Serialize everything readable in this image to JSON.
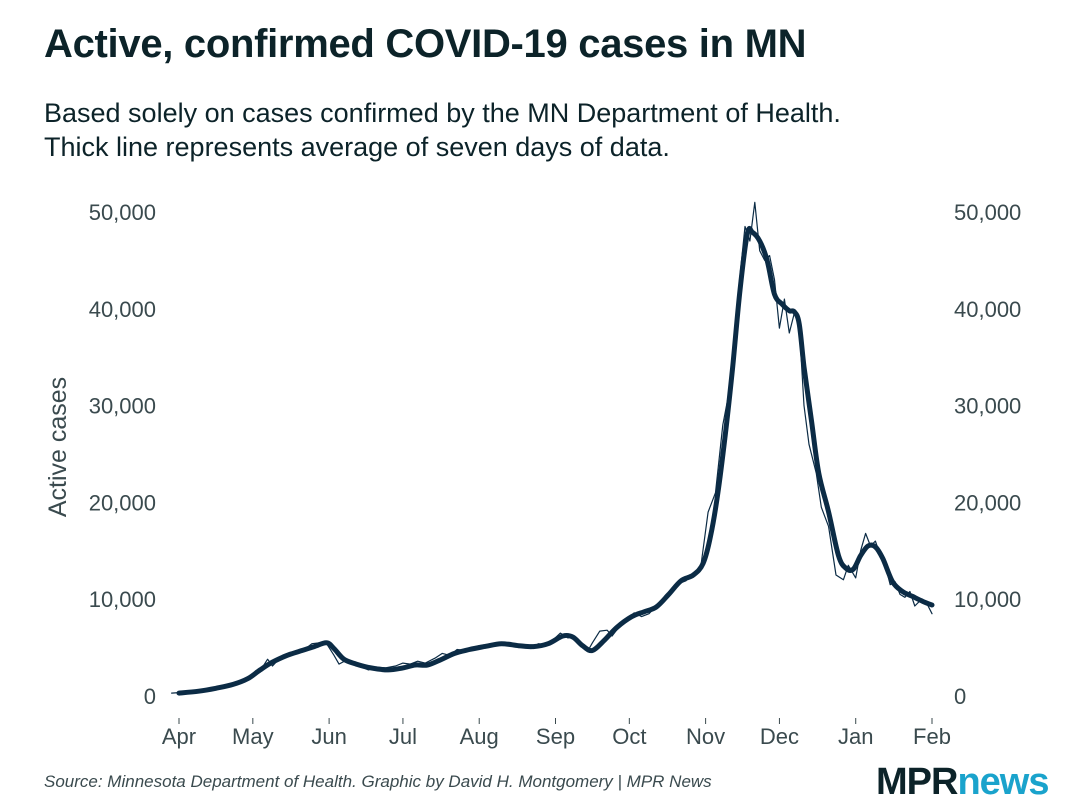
{
  "header": {
    "title": "Active, confirmed COVID-19 cases in MN",
    "subtitle_lines": [
      "Based solely on cases confirmed by the MN Department of Health.",
      "Thick line represents average of seven days of data."
    ]
  },
  "footer": {
    "source": "Source: Minnesota Department of Health. Graphic by David H. Montgomery | MPR News",
    "logo_mpr": "MPR",
    "logo_news": "news"
  },
  "colors": {
    "line": "#0b2b45",
    "text": "#0c2329",
    "axis_text": "#3a4a4e",
    "logo_dark": "#0c2329",
    "logo_accent": "#1aa3cc"
  },
  "chart_data": {
    "type": "line",
    "title": "Active, confirmed COVID-19 cases in MN",
    "xlabel": "",
    "ylabel": "Active cases",
    "x_unit": "days since Apr 1",
    "xlim": [
      0,
      306
    ],
    "ylim": [
      0,
      50000
    ],
    "grid": false,
    "legend": "none",
    "x_ticks": [
      {
        "day": 0,
        "label": "Apr"
      },
      {
        "day": 30,
        "label": "May"
      },
      {
        "day": 61,
        "label": "Jun"
      },
      {
        "day": 91,
        "label": "Jul"
      },
      {
        "day": 122,
        "label": "Aug"
      },
      {
        "day": 153,
        "label": "Sep"
      },
      {
        "day": 183,
        "label": "Oct"
      },
      {
        "day": 214,
        "label": "Nov"
      },
      {
        "day": 244,
        "label": "Dec"
      },
      {
        "day": 275,
        "label": "Jan"
      },
      {
        "day": 306,
        "label": "Feb"
      }
    ],
    "y_ticks": [
      {
        "value": 0,
        "label": "0"
      },
      {
        "value": 10000,
        "label": "10,000"
      },
      {
        "value": 20000,
        "label": "20,000"
      },
      {
        "value": 30000,
        "label": "30,000"
      },
      {
        "value": 40000,
        "label": "40,000"
      },
      {
        "value": 50000,
        "label": "50,000"
      }
    ],
    "series": [
      {
        "name": "Daily active cases",
        "style": "thin",
        "points": [
          [
            -3,
            300
          ],
          [
            3,
            400
          ],
          [
            10,
            600
          ],
          [
            17,
            900
          ],
          [
            24,
            1400
          ],
          [
            30,
            2000
          ],
          [
            33,
            2600
          ],
          [
            36,
            3800
          ],
          [
            38,
            3100
          ],
          [
            42,
            4200
          ],
          [
            45,
            4500
          ],
          [
            48,
            4600
          ],
          [
            51,
            4800
          ],
          [
            54,
            5400
          ],
          [
            57,
            5500
          ],
          [
            60,
            5400
          ],
          [
            63,
            4200
          ],
          [
            65,
            3300
          ],
          [
            68,
            3700
          ],
          [
            71,
            3200
          ],
          [
            74,
            3000
          ],
          [
            77,
            2700
          ],
          [
            80,
            3000
          ],
          [
            84,
            2900
          ],
          [
            88,
            3100
          ],
          [
            91,
            3400
          ],
          [
            94,
            3300
          ],
          [
            97,
            3600
          ],
          [
            100,
            3400
          ],
          [
            104,
            3900
          ],
          [
            107,
            4400
          ],
          [
            110,
            4200
          ],
          [
            113,
            4800
          ],
          [
            116,
            4700
          ],
          [
            119,
            5000
          ],
          [
            122,
            5200
          ],
          [
            125,
            5000
          ],
          [
            128,
            5300
          ],
          [
            131,
            5500
          ],
          [
            134,
            5500
          ],
          [
            137,
            5100
          ],
          [
            140,
            5300
          ],
          [
            143,
            4900
          ],
          [
            146,
            5400
          ],
          [
            149,
            5300
          ],
          [
            152,
            5800
          ],
          [
            155,
            6500
          ],
          [
            158,
            6000
          ],
          [
            161,
            6100
          ],
          [
            163,
            5200
          ],
          [
            166,
            4600
          ],
          [
            168,
            5500
          ],
          [
            171,
            6700
          ],
          [
            174,
            6800
          ],
          [
            176,
            6200
          ],
          [
            179,
            7200
          ],
          [
            182,
            8000
          ],
          [
            185,
            8600
          ],
          [
            188,
            8200
          ],
          [
            191,
            8500
          ],
          [
            194,
            9300
          ],
          [
            197,
            9900
          ],
          [
            200,
            10600
          ],
          [
            203,
            11600
          ],
          [
            206,
            11900
          ],
          [
            209,
            12700
          ],
          [
            212,
            13300
          ],
          [
            215,
            19000
          ],
          [
            218,
            21000
          ],
          [
            221,
            28000
          ],
          [
            224,
            32000
          ],
          [
            227,
            41000
          ],
          [
            230,
            48500
          ],
          [
            232,
            47000
          ],
          [
            234,
            51000
          ],
          [
            236,
            46000
          ],
          [
            238,
            45000
          ],
          [
            240,
            45500
          ],
          [
            242,
            43000
          ],
          [
            244,
            38000
          ],
          [
            246,
            41000
          ],
          [
            248,
            37500
          ],
          [
            250,
            39500
          ],
          [
            252,
            38500
          ],
          [
            254,
            30000
          ],
          [
            256,
            26000
          ],
          [
            259,
            23000
          ],
          [
            261,
            19500
          ],
          [
            264,
            17500
          ],
          [
            267,
            12500
          ],
          [
            270,
            12000
          ],
          [
            272,
            13500
          ],
          [
            275,
            12200
          ],
          [
            277,
            15000
          ],
          [
            279,
            16800
          ],
          [
            281,
            15500
          ],
          [
            283,
            16000
          ],
          [
            285,
            14500
          ],
          [
            287,
            13500
          ],
          [
            289,
            11500
          ],
          [
            291,
            11800
          ],
          [
            293,
            10500
          ],
          [
            295,
            10200
          ],
          [
            297,
            10800
          ],
          [
            299,
            9300
          ],
          [
            301,
            9800
          ],
          [
            304,
            9500
          ],
          [
            306,
            8500
          ]
        ]
      },
      {
        "name": "7-day average",
        "style": "thick",
        "points": [
          [
            0,
            300
          ],
          [
            8,
            500
          ],
          [
            15,
            800
          ],
          [
            22,
            1200
          ],
          [
            28,
            1800
          ],
          [
            33,
            2700
          ],
          [
            38,
            3500
          ],
          [
            44,
            4200
          ],
          [
            50,
            4700
          ],
          [
            55,
            5100
          ],
          [
            60,
            5500
          ],
          [
            63,
            4900
          ],
          [
            67,
            3800
          ],
          [
            72,
            3300
          ],
          [
            78,
            2900
          ],
          [
            85,
            2700
          ],
          [
            91,
            2900
          ],
          [
            96,
            3200
          ],
          [
            101,
            3200
          ],
          [
            106,
            3700
          ],
          [
            112,
            4400
          ],
          [
            118,
            4800
          ],
          [
            124,
            5100
          ],
          [
            131,
            5400
          ],
          [
            138,
            5200
          ],
          [
            144,
            5100
          ],
          [
            150,
            5400
          ],
          [
            156,
            6200
          ],
          [
            160,
            6100
          ],
          [
            164,
            5200
          ],
          [
            168,
            4700
          ],
          [
            173,
            5800
          ],
          [
            178,
            7100
          ],
          [
            184,
            8200
          ],
          [
            189,
            8700
          ],
          [
            194,
            9200
          ],
          [
            199,
            10500
          ],
          [
            204,
            11900
          ],
          [
            209,
            12500
          ],
          [
            213,
            13700
          ],
          [
            216,
            16500
          ],
          [
            219,
            21000
          ],
          [
            222,
            27000
          ],
          [
            225,
            34000
          ],
          [
            228,
            42000
          ],
          [
            231,
            47800
          ],
          [
            233,
            47900
          ],
          [
            236,
            47000
          ],
          [
            239,
            45000
          ],
          [
            242,
            41500
          ],
          [
            245,
            40500
          ],
          [
            248,
            39800
          ],
          [
            250,
            39700
          ],
          [
            252,
            38500
          ],
          [
            254,
            34000
          ],
          [
            257,
            28500
          ],
          [
            260,
            23000
          ],
          [
            264,
            19000
          ],
          [
            268,
            14500
          ],
          [
            271,
            13200
          ],
          [
            274,
            13100
          ],
          [
            277,
            14500
          ],
          [
            280,
            15500
          ],
          [
            283,
            15400
          ],
          [
            286,
            14200
          ],
          [
            290,
            11800
          ],
          [
            294,
            10800
          ],
          [
            298,
            10300
          ],
          [
            302,
            9800
          ],
          [
            306,
            9400
          ]
        ]
      }
    ]
  }
}
